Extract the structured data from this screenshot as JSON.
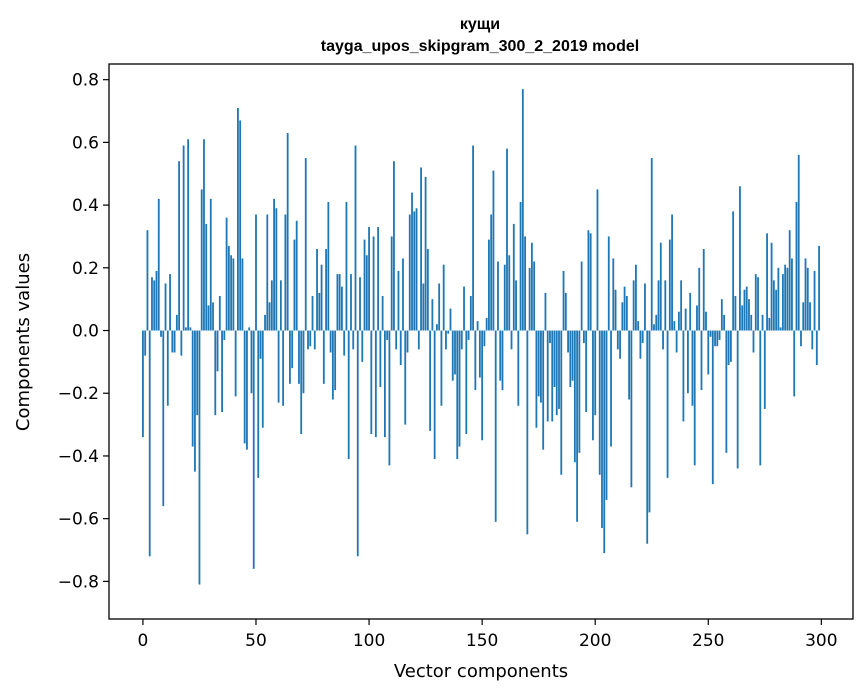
{
  "chart_data": {
    "type": "bar",
    "title": "кущи",
    "subtitle": "tayga_upos_skipgram_300_2_2019 model",
    "xlabel": "Vector components",
    "ylabel": "Components values",
    "xlim": [
      -15,
      314
    ],
    "ylim": [
      -0.92,
      0.85
    ],
    "xticks": [
      0,
      50,
      100,
      150,
      200,
      250,
      300
    ],
    "xtick_labels": [
      "0",
      "50",
      "100",
      "150",
      "200",
      "250",
      "300"
    ],
    "yticks": [
      -0.8,
      -0.6,
      -0.4,
      -0.2,
      0.0,
      0.2,
      0.4,
      0.6,
      0.8
    ],
    "ytick_labels": [
      "−0.8",
      "−0.6",
      "−0.4",
      "−0.2",
      "0.0",
      "0.2",
      "0.4",
      "0.6",
      "0.8"
    ],
    "bar_color": "#1f77b4",
    "bar_width": 0.8,
    "values": [
      -0.34,
      -0.08,
      0.32,
      -0.72,
      0.17,
      0.16,
      0.19,
      0.42,
      -0.02,
      -0.56,
      0.15,
      -0.24,
      0.18,
      -0.07,
      -0.07,
      0.05,
      0.54,
      -0.08,
      0.59,
      0.01,
      0.61,
      0.01,
      -0.37,
      -0.45,
      -0.27,
      -0.81,
      0.45,
      0.61,
      0.34,
      0.08,
      0.42,
      0.09,
      -0.27,
      -0.13,
      0.11,
      -0.26,
      -0.03,
      0.36,
      0.27,
      0.24,
      0.23,
      -0.21,
      0.71,
      0.67,
      0.23,
      -0.36,
      -0.38,
      0.01,
      -0.2,
      -0.76,
      0.37,
      -0.47,
      -0.09,
      -0.31,
      0.05,
      0.37,
      0.09,
      0.16,
      0.42,
      0.39,
      -0.23,
      0.16,
      -0.24,
      0.37,
      0.63,
      -0.17,
      -0.12,
      0.29,
      0.35,
      -0.17,
      -0.33,
      -0.2,
      0.55,
      -0.06,
      -0.05,
      0.11,
      -0.06,
      0.26,
      0.12,
      0.21,
      -0.17,
      0.26,
      0.41,
      -0.07,
      -0.22,
      -0.19,
      0.18,
      0.18,
      0.14,
      -0.08,
      0.41,
      -0.41,
      0.18,
      -0.06,
      0.59,
      -0.72,
      0.17,
      -0.1,
      0.29,
      0.24,
      0.33,
      -0.33,
      0.3,
      -0.34,
      0.33,
      -0.18,
      0.11,
      -0.34,
      -0.03,
      -0.43,
      0.3,
      0.54,
      -0.06,
      0.19,
      -0.11,
      0.23,
      -0.3,
      -0.07,
      0.37,
      0.44,
      0.38,
      0.39,
      -0.06,
      0.52,
      0.15,
      0.49,
      0.26,
      -0.32,
      0.1,
      -0.41,
      0.02,
      0.15,
      -0.24,
      0.21,
      -0.06,
      -0.01,
      0.07,
      -0.16,
      -0.14,
      -0.41,
      -0.37,
      -0.06,
      0.14,
      -0.33,
      -0.03,
      0.11,
      0.59,
      -0.19,
      0.03,
      -0.15,
      -0.35,
      -0.05,
      0.04,
      0.29,
      0.37,
      0.51,
      -0.61,
      0.22,
      -0.16,
      -0.19,
      0.21,
      0.58,
      0.24,
      -0.06,
      0.34,
      0.16,
      -0.24,
      0.41,
      0.77,
      0.3,
      -0.65,
      0.2,
      0.28,
      0.22,
      -0.31,
      -0.21,
      -0.23,
      -0.38,
      0.12,
      -0.29,
      -0.04,
      -0.29,
      -0.18,
      -0.27,
      -0.25,
      -0.46,
      0.19,
      0.12,
      -0.07,
      -0.18,
      -0.16,
      -0.42,
      -0.61,
      -0.39,
      0.22,
      -0.04,
      -0.26,
      0.32,
      0.31,
      -0.35,
      -0.27,
      0.45,
      -0.46,
      -0.63,
      -0.71,
      -0.54,
      0.3,
      -0.37,
      0.23,
      0.13,
      -0.06,
      -0.09,
      0.09,
      0.14,
      0.11,
      -0.22,
      -0.5,
      0.16,
      0.21,
      0.03,
      -0.09,
      -0.04,
      0.15,
      -0.68,
      -0.58,
      0.55,
      0.02,
      0.05,
      0.16,
      0.28,
      -0.06,
      0.16,
      -0.47,
      0.29,
      0.37,
      0.03,
      -0.07,
      0.06,
      0.16,
      -0.29,
      0.07,
      -0.2,
      0.12,
      -0.24,
      -0.43,
      0.08,
      0.2,
      -0.19,
      0.26,
      0.06,
      -0.14,
      -0.02,
      -0.49,
      -0.05,
      -0.05,
      -0.03,
      0.1,
      0.05,
      -0.39,
      -0.11,
      -0.1,
      0.38,
      0.11,
      -0.44,
      0.46,
      0.08,
      0.13,
      0.14,
      0.1,
      0.05,
      -0.07,
      0.18,
      0.17,
      -0.43,
      0.05,
      -0.25,
      0.31,
      0.04,
      0.28,
      0.16,
      0.13,
      0.2,
      0.01,
      0.18,
      0.21,
      0.2,
      0.32,
      0.23,
      -0.21,
      0.41,
      0.56,
      -0.05,
      0.09,
      0.23,
      0.2,
      0.09,
      -0.06,
      0.19,
      -0.11,
      0.27
    ]
  }
}
